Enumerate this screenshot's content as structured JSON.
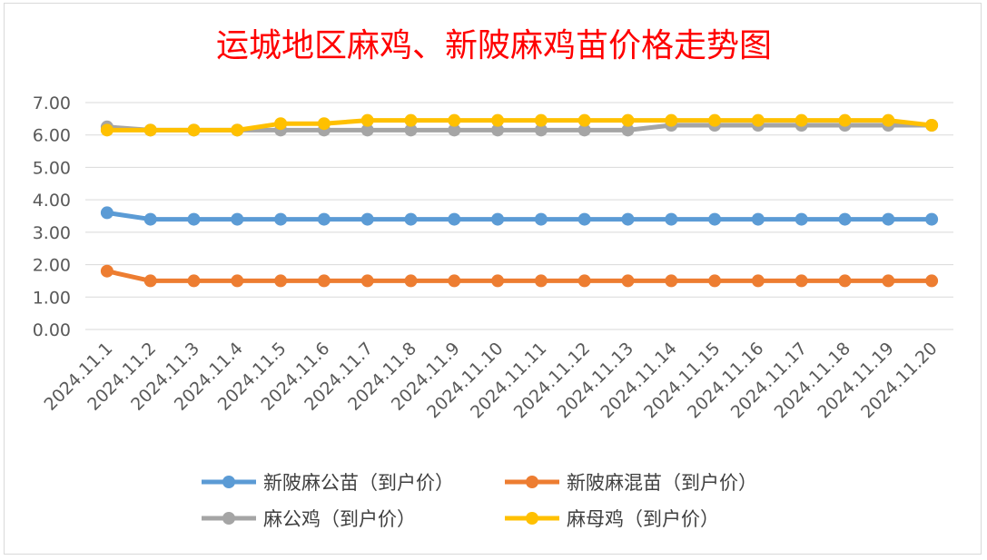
{
  "chart_data": {
    "type": "line",
    "title": "运城地区麻鸡、新陂麻鸡苗价格走势图",
    "xlabel": "",
    "ylabel": "",
    "categories": [
      "2024.11.1",
      "2024.11.2",
      "2024.11.3",
      "2024.11.4",
      "2024.11.5",
      "2024.11.6",
      "2024.11.7",
      "2024.11.8",
      "2024.11.9",
      "2024.11.10",
      "2024.11.11",
      "2024.11.12",
      "2024.11.13",
      "2024.11.14",
      "2024.11.15",
      "2024.11.16",
      "2024.11.17",
      "2024.11.18",
      "2024.11.19",
      "2024.11.20"
    ],
    "ylim": [
      0,
      7
    ],
    "yticks": [
      "0.00",
      "1.00",
      "2.00",
      "3.00",
      "4.00",
      "5.00",
      "6.00",
      "7.00"
    ],
    "grid": true,
    "legend_position": "bottom",
    "series": [
      {
        "name": "新陂麻公苗（到户价）",
        "color": "#5b9bd5",
        "values": [
          3.6,
          3.4,
          3.4,
          3.4,
          3.4,
          3.4,
          3.4,
          3.4,
          3.4,
          3.4,
          3.4,
          3.4,
          3.4,
          3.4,
          3.4,
          3.4,
          3.4,
          3.4,
          3.4,
          3.4
        ]
      },
      {
        "name": "新陂麻混苗（到户价）",
        "color": "#ed7d31",
        "values": [
          1.8,
          1.5,
          1.5,
          1.5,
          1.5,
          1.5,
          1.5,
          1.5,
          1.5,
          1.5,
          1.5,
          1.5,
          1.5,
          1.5,
          1.5,
          1.5,
          1.5,
          1.5,
          1.5,
          1.5
        ]
      },
      {
        "name": "麻公鸡（到户价）",
        "color": "#a5a5a5",
        "values": [
          6.25,
          6.15,
          6.15,
          6.15,
          6.15,
          6.15,
          6.15,
          6.15,
          6.15,
          6.15,
          6.15,
          6.15,
          6.15,
          6.3,
          6.3,
          6.3,
          6.3,
          6.3,
          6.3,
          6.3
        ]
      },
      {
        "name": "麻母鸡（到户价）",
        "color": "#ffc000",
        "values": [
          6.15,
          6.15,
          6.15,
          6.15,
          6.35,
          6.35,
          6.45,
          6.45,
          6.45,
          6.45,
          6.45,
          6.45,
          6.45,
          6.45,
          6.45,
          6.45,
          6.45,
          6.45,
          6.45,
          6.3
        ]
      }
    ]
  }
}
